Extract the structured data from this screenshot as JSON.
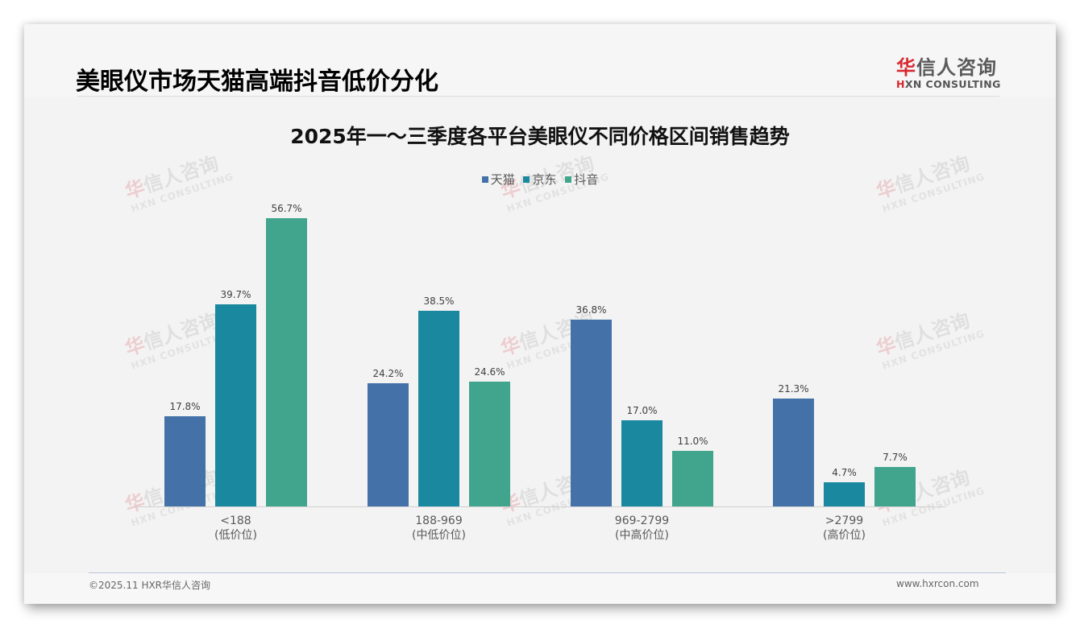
{
  "header": {
    "title": "美眼仪市场天猫高端抖音低价分化",
    "logo_cn_first": "华",
    "logo_cn_rest": "信人咨询",
    "logo_en_first": "H",
    "logo_en_rest": "XN CONSULTING"
  },
  "watermark": {
    "cn_first": "华",
    "cn_rest": "信人咨询",
    "en": "HXN CONSULTING"
  },
  "footer": {
    "copyright": "©2025.11 HXR华信人咨询",
    "website": "www.hxrcon.com"
  },
  "colors": {
    "tmall": "#4472a8",
    "jd": "#1a889f",
    "douyin": "#41a58e",
    "logo_red": "#d7282f"
  },
  "chart_data": {
    "type": "bar",
    "title": "2025年一～三季度各平台美眼仪不同价格区间销售趋势",
    "xlabel": "",
    "ylabel": "",
    "ylim": [
      0,
      60
    ],
    "grid": false,
    "legend_position": "top",
    "categories": [
      "<188\n(低价位)",
      "188-969\n(中低价位)",
      "969-2799\n(中高价位)",
      ">2799\n(高价位)"
    ],
    "category_ranges": [
      "<188",
      "188-969",
      "969-2799",
      ">2799"
    ],
    "category_tiers": [
      "(低价位)",
      "(中低价位)",
      "(中高价位)",
      "(高价位)"
    ],
    "series": [
      {
        "name": "天猫",
        "color": "#4472a8",
        "values": [
          17.8,
          24.2,
          36.8,
          21.3
        ],
        "labels": [
          "17.8%",
          "24.2%",
          "36.8%",
          "21.3%"
        ]
      },
      {
        "name": "京东",
        "color": "#1a889f",
        "values": [
          39.7,
          38.5,
          17.0,
          4.7
        ],
        "labels": [
          "39.7%",
          "38.5%",
          "17.0%",
          "4.7%"
        ]
      },
      {
        "name": "抖音",
        "color": "#41a58e",
        "values": [
          56.7,
          24.6,
          11.0,
          7.7
        ],
        "labels": [
          "56.7%",
          "24.6%",
          "11.0%",
          "7.7%"
        ]
      }
    ]
  }
}
